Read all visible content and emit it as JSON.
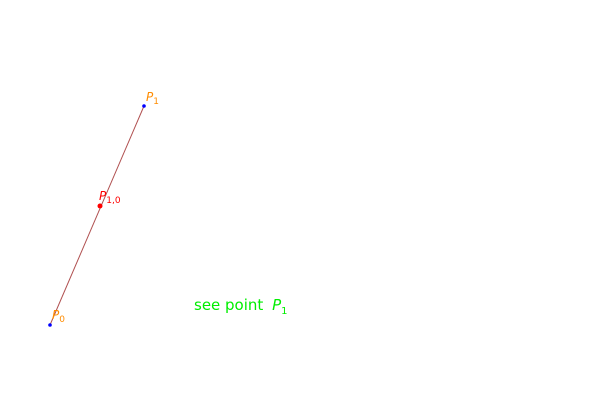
{
  "points": [
    {
      "name": "P",
      "sub": "0",
      "color": "#ff8c00"
    },
    {
      "name": "P",
      "sub": "1",
      "color": "#ff8c00"
    },
    {
      "name": "P",
      "sub": "1,0",
      "color": "#ff0000"
    }
  ],
  "segment_color": "#b05050",
  "control_point_color": "#0000ff",
  "caption": {
    "prefix": "see point ",
    "name": "P",
    "sub": "1",
    "color": "#00ee00"
  }
}
